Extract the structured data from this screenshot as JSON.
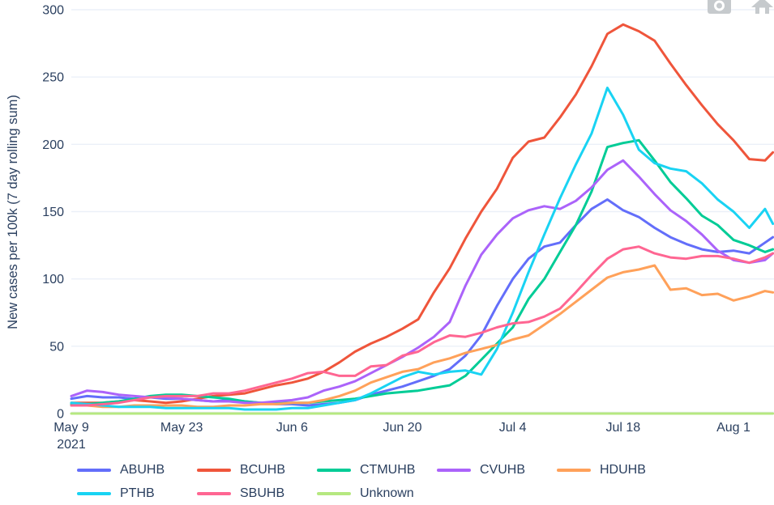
{
  "figure": {
    "background": "#ffffff",
    "text_color": "#2a3f5f",
    "grid_color": "#ebf0f8",
    "zero_line_color": "#e8eef5",
    "modebar_icon_color": "#c6cacd"
  },
  "modebar": {
    "icons": [
      "camera-icon",
      "home-icon"
    ]
  },
  "y_axis": {
    "title": "New cases per 100k (7 day rolling sum)",
    "ticks": [
      0,
      50,
      100,
      150,
      200,
      250,
      300
    ],
    "range": [
      0,
      300
    ]
  },
  "x_axis": {
    "ticks": [
      {
        "label": "May 9",
        "sublabel": "2021",
        "day": 0
      },
      {
        "label": "May 23",
        "sublabel": "",
        "day": 14
      },
      {
        "label": "Jun 6",
        "sublabel": "",
        "day": 28
      },
      {
        "label": "Jun 20",
        "sublabel": "",
        "day": 42
      },
      {
        "label": "Jul 4",
        "sublabel": "",
        "day": 56
      },
      {
        "label": "Jul 18",
        "sublabel": "",
        "day": 70
      },
      {
        "label": "Aug 1",
        "sublabel": "",
        "day": 84
      }
    ],
    "range_days": [
      0,
      89
    ]
  },
  "chart_data": {
    "type": "line",
    "title": "",
    "xlabel": "",
    "ylabel": "New cases per 100k (7 day rolling sum)",
    "start_date": "2021-05-09",
    "ylim": [
      0,
      300
    ],
    "grid": "horizontal-only",
    "legend_position": "bottom",
    "days": [
      0,
      2,
      4,
      6,
      8,
      10,
      12,
      14,
      16,
      18,
      20,
      22,
      24,
      26,
      28,
      30,
      32,
      34,
      36,
      38,
      40,
      42,
      44,
      46,
      48,
      50,
      52,
      54,
      56,
      58,
      60,
      62,
      64,
      66,
      68,
      70,
      72,
      74,
      76,
      78,
      80,
      82,
      84,
      86,
      88,
      89
    ],
    "series": [
      {
        "name": "ABUHB",
        "color": "#636EFA",
        "values": [
          11,
          13,
          12,
          12,
          11,
          12,
          11,
          11,
          10,
          9,
          10,
          9,
          8,
          7,
          7,
          6,
          7,
          8,
          10,
          14,
          17,
          20,
          24,
          28,
          33,
          43,
          58,
          80,
          100,
          115,
          124,
          127,
          140,
          152,
          159,
          151,
          146,
          138,
          131,
          126,
          122,
          120,
          121,
          119,
          127,
          131
        ]
      },
      {
        "name": "BCUHB",
        "color": "#EF553B",
        "values": [
          8,
          8,
          8,
          9,
          10,
          9,
          8,
          9,
          11,
          13,
          14,
          15,
          18,
          21,
          23,
          26,
          31,
          38,
          46,
          52,
          57,
          63,
          70,
          90,
          108,
          130,
          150,
          167,
          190,
          202,
          205,
          220,
          237,
          258,
          282,
          289,
          284,
          277,
          260,
          244,
          229,
          215,
          203,
          189,
          188,
          194
        ]
      },
      {
        "name": "CTMUHB",
        "color": "#00CC96",
        "values": [
          7,
          7,
          8,
          9,
          11,
          13,
          14,
          14,
          13,
          12,
          11,
          9,
          8,
          8,
          8,
          8,
          9,
          10,
          11,
          13,
          15,
          16,
          17,
          19,
          21,
          28,
          40,
          52,
          64,
          85,
          100,
          120,
          140,
          165,
          198,
          201,
          203,
          188,
          172,
          160,
          147,
          140,
          129,
          125,
          120,
          122
        ]
      },
      {
        "name": "CVUHB",
        "color": "#AB63FA",
        "values": [
          13,
          17,
          16,
          14,
          13,
          12,
          12,
          11,
          10,
          9,
          9,
          8,
          8,
          9,
          10,
          12,
          17,
          20,
          24,
          30,
          36,
          42,
          49,
          57,
          68,
          95,
          118,
          133,
          145,
          151,
          154,
          152,
          158,
          168,
          181,
          188,
          176,
          163,
          151,
          143,
          133,
          121,
          114,
          112,
          114,
          119
        ]
      },
      {
        "name": "HDUHB",
        "color": "#FFA15A",
        "values": [
          6,
          6,
          5,
          5,
          6,
          6,
          6,
          6,
          5,
          5,
          6,
          6,
          7,
          7,
          8,
          8,
          10,
          13,
          17,
          23,
          27,
          31,
          33,
          38,
          41,
          45,
          48,
          51,
          55,
          58,
          66,
          74,
          83,
          92,
          101,
          105,
          107,
          110,
          92,
          93,
          88,
          89,
          84,
          87,
          91,
          90
        ]
      },
      {
        "name": "PTHB",
        "color": "#19D3F3",
        "values": [
          8,
          7,
          6,
          5,
          5,
          5,
          4,
          4,
          4,
          4,
          4,
          3,
          3,
          3,
          4,
          4,
          6,
          8,
          10,
          15,
          21,
          27,
          31,
          29,
          31,
          32,
          29,
          48,
          75,
          105,
          133,
          160,
          185,
          208,
          242,
          222,
          196,
          186,
          182,
          180,
          171,
          159,
          150,
          138,
          152,
          141
        ]
      },
      {
        "name": "SBUHB",
        "color": "#FF6692",
        "values": [
          6,
          6,
          7,
          8,
          10,
          12,
          13,
          13,
          13,
          15,
          15,
          17,
          20,
          23,
          26,
          30,
          31,
          28,
          28,
          35,
          36,
          43,
          46,
          53,
          58,
          57,
          60,
          64,
          67,
          68,
          72,
          78,
          90,
          103,
          115,
          122,
          124,
          119,
          116,
          115,
          117,
          117,
          115,
          112,
          116,
          119
        ]
      },
      {
        "name": "Unknown",
        "color": "#B6E880",
        "values": [
          0,
          0,
          0,
          0,
          0,
          0,
          0,
          0,
          0,
          0,
          0,
          0,
          0,
          0,
          0,
          0,
          0,
          0,
          0,
          0,
          0,
          0,
          0,
          0,
          0,
          0,
          0,
          0,
          0,
          0,
          0,
          0,
          0,
          0,
          0,
          0,
          0,
          0,
          0,
          0,
          0,
          0,
          0,
          0,
          0,
          0
        ]
      }
    ]
  },
  "legend": {
    "items": [
      "ABUHB",
      "BCUHB",
      "CTMUHB",
      "CVUHB",
      "HDUHB",
      "PTHB",
      "SBUHB",
      "Unknown"
    ]
  }
}
